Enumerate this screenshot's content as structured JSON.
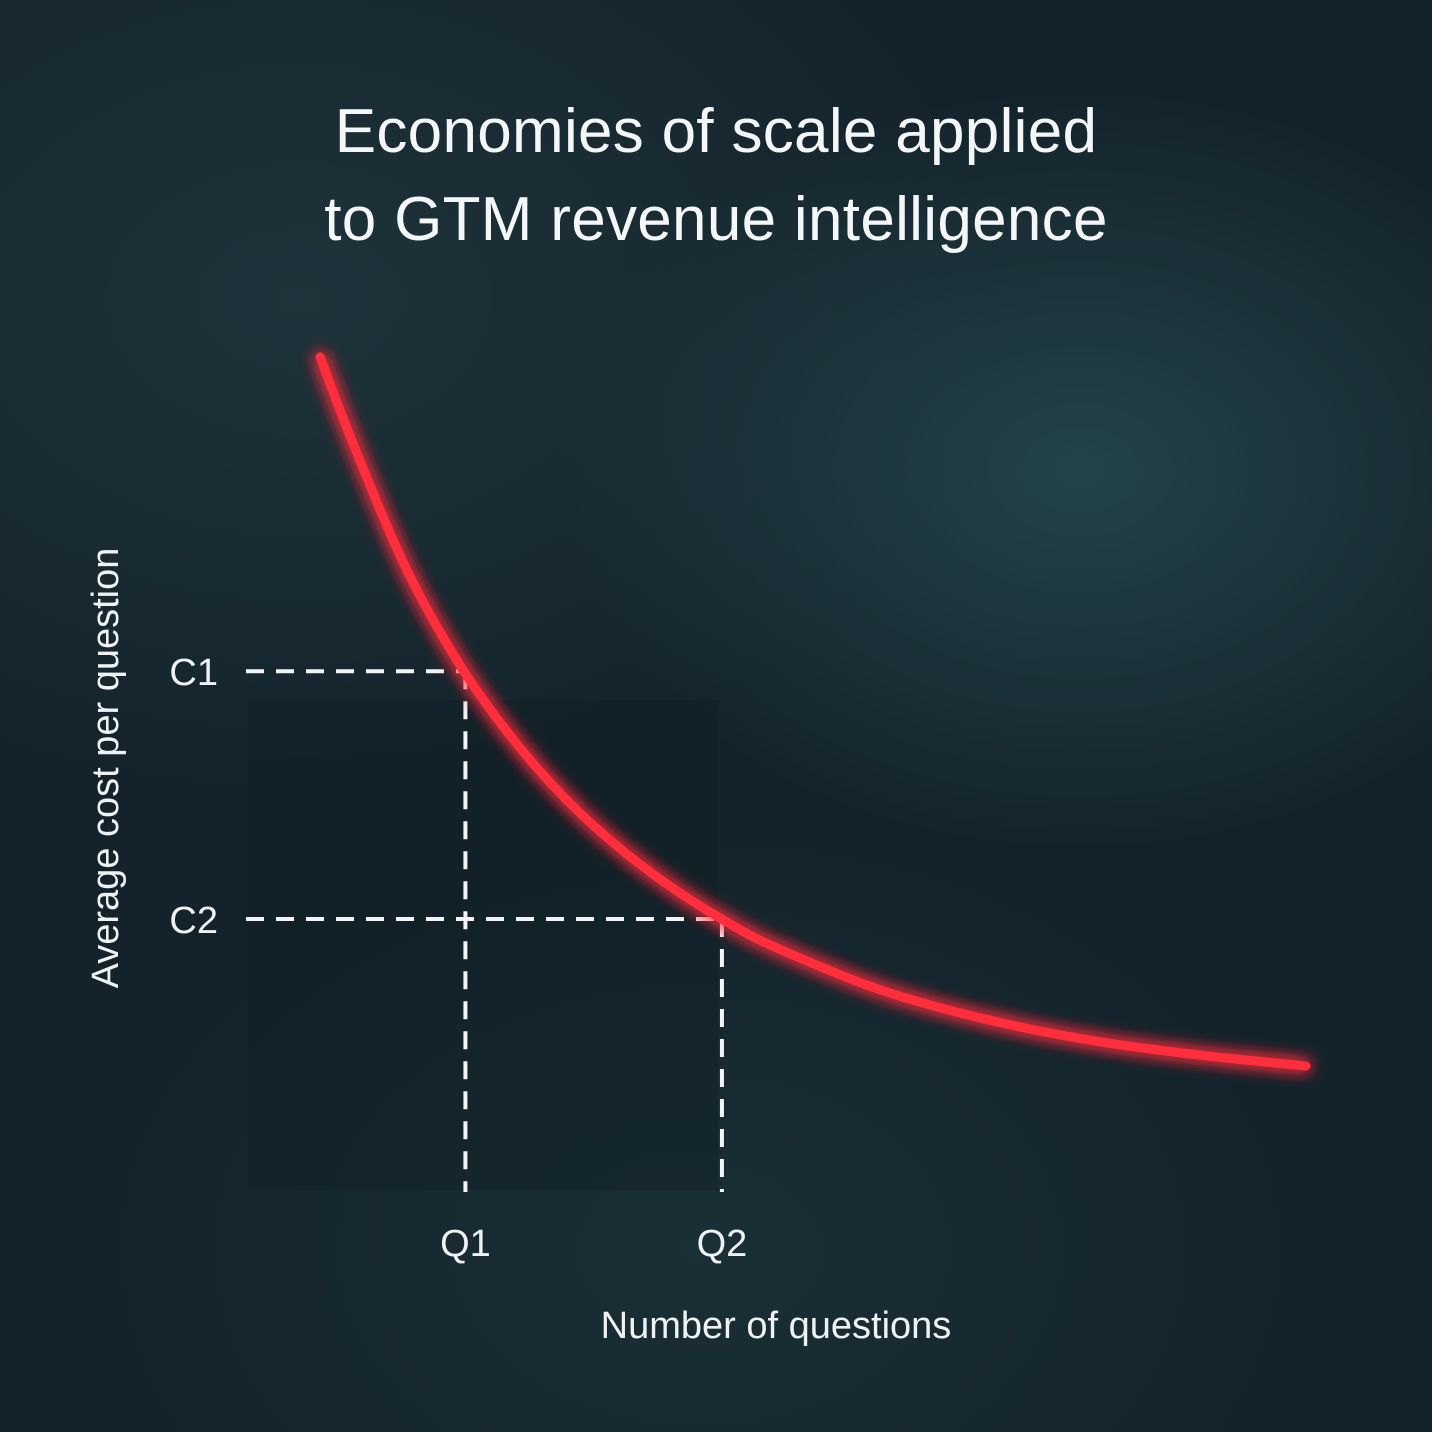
{
  "title_lines": [
    "Economies of scale applied",
    "to GTM revenue intelligence"
  ],
  "chart_data": {
    "type": "line",
    "xlabel": "Number of questions",
    "ylabel": "Average cost per question",
    "x_ticks": [
      "Q1",
      "Q2"
    ],
    "y_ticks": [
      "C1",
      "C2"
    ],
    "xlim": [
      0,
      10
    ],
    "ylim": [
      0,
      10
    ],
    "series": [
      {
        "color": "#ff2d3d",
        "x": [
          0.7,
          1.0,
          1.5,
          2.0,
          2.5,
          3.0,
          3.5,
          4.0,
          4.5,
          5.0,
          6.0,
          7.0,
          8.0,
          9.0,
          10.0
        ],
        "y": [
          9.94,
          8.94,
          7.45,
          6.31,
          5.42,
          4.7,
          4.12,
          3.64,
          3.24,
          2.91,
          2.4,
          2.05,
          1.8,
          1.63,
          1.5
        ]
      }
    ],
    "reference_points": [
      {
        "x_label": "Q1",
        "y_label": "C1",
        "x": 2.07,
        "y": 6.2
      },
      {
        "x_label": "Q2",
        "y_label": "C2",
        "x": 4.49,
        "y": 3.25
      }
    ],
    "axis_color": "#ffffff",
    "grid": false
  }
}
